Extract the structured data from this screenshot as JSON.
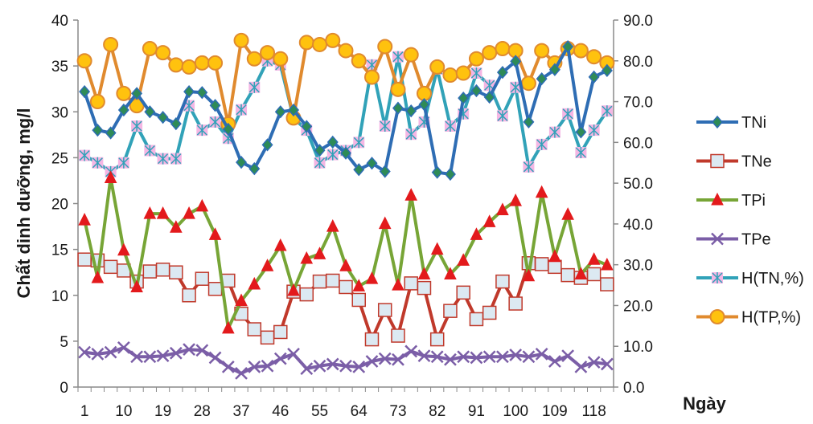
{
  "chart_data": {
    "type": "line",
    "ylabel": "Chất dinh dưỡng, mg/l",
    "xlabel": "Ngày",
    "ylim": [
      0,
      40
    ],
    "y2lim": [
      0,
      90
    ],
    "yticks": [
      "0",
      "5",
      "10",
      "15",
      "20",
      "25",
      "30",
      "35",
      "40"
    ],
    "y2ticks": [
      "0.0",
      "10.0",
      "20.0",
      "30.0",
      "40.0",
      "50.0",
      "60.0",
      "70.0",
      "80.0",
      "90.0"
    ],
    "xticks": [
      "1",
      "10",
      "19",
      "28",
      "37",
      "46",
      "55",
      "64",
      "73",
      "82",
      "91",
      "100",
      "109",
      "118"
    ],
    "grid": false,
    "legend_position": "right",
    "series": [
      {
        "name": "TNi",
        "axis": "left",
        "color": "#2e6db4",
        "marker": "diamond",
        "marker_fill": "#2e8b57",
        "values": [
          32.2,
          28.0,
          27.7,
          30.2,
          32.0,
          30.0,
          29.4,
          28.7,
          32.2,
          32.1,
          30.7,
          28.1,
          24.5,
          23.8,
          26.4,
          30.0,
          30.2,
          28.4,
          25.8,
          26.7,
          25.5,
          23.7,
          24.4,
          23.5,
          30.4,
          30.1,
          30.8,
          23.4,
          23.2,
          31.5,
          32.3,
          31.6,
          34.3,
          35.5,
          28.9,
          33.6,
          34.6,
          37.1,
          27.8,
          33.8,
          34.5
        ]
      },
      {
        "name": "TNe",
        "axis": "left",
        "color": "#c0392b",
        "marker": "square",
        "marker_fill": "#dce9f2",
        "values": [
          13.9,
          13.8,
          13.1,
          12.7,
          11.5,
          12.6,
          12.8,
          12.5,
          10.0,
          11.8,
          10.7,
          11.6,
          8.0,
          6.3,
          5.4,
          6.0,
          10.4,
          10.1,
          11.5,
          11.6,
          10.9,
          9.5,
          5.2,
          8.4,
          5.6,
          11.3,
          10.8,
          5.2,
          8.3,
          10.3,
          7.4,
          8.1,
          11.5,
          9.1,
          13.5,
          13.4,
          13.1,
          12.2,
          11.9,
          12.3,
          11.2
        ]
      },
      {
        "name": "TPi",
        "axis": "left",
        "color": "#77a536",
        "marker": "triangle",
        "marker_fill": "#e31a1c",
        "values": [
          18.2,
          11.9,
          22.8,
          14.9,
          10.9,
          18.9,
          18.9,
          17.4,
          18.9,
          19.7,
          16.6,
          6.4,
          9.4,
          11.2,
          13.2,
          15.4,
          10.5,
          14.0,
          14.5,
          17.5,
          13.2,
          11.0,
          11.8,
          17.8,
          11.1,
          20.9,
          12.3,
          15.0,
          12.3,
          13.8,
          16.6,
          18.0,
          19.3,
          20.3,
          12.1,
          21.2,
          14.2,
          18.8,
          12.3,
          13.9,
          13.3
        ]
      },
      {
        "name": "TPe",
        "axis": "left",
        "color": "#7b5ea7",
        "marker": "x",
        "marker_fill": "#7b5ea7",
        "values": [
          3.8,
          3.6,
          3.8,
          4.3,
          3.3,
          3.3,
          3.4,
          3.7,
          4.1,
          4.0,
          3.2,
          2.2,
          1.5,
          2.2,
          2.3,
          3.1,
          3.6,
          2.0,
          2.3,
          2.5,
          2.3,
          2.2,
          2.8,
          3.1,
          3.0,
          3.9,
          3.4,
          3.3,
          3.0,
          3.3,
          3.2,
          3.3,
          3.3,
          3.5,
          3.3,
          3.6,
          2.8,
          3.4,
          2.2,
          2.7,
          2.5
        ]
      },
      {
        "name": "H(TN,%)",
        "axis": "right",
        "color": "#31a2b8",
        "marker": "asterisk",
        "marker_fill": "#f4b6e4",
        "values": [
          56.8,
          55.0,
          52.8,
          55.0,
          64.0,
          58.0,
          56.0,
          56.0,
          69.0,
          63.0,
          65.0,
          61.0,
          68.0,
          73.5,
          80.0,
          79.0,
          66.0,
          63.0,
          55.0,
          57.0,
          58.0,
          60.0,
          79.0,
          64.0,
          81.0,
          62.0,
          65.0,
          78.0,
          64.0,
          67.0,
          77.0,
          74.0,
          66.5,
          73.5,
          54.0,
          59.5,
          62.5,
          67.0,
          57.5,
          63.0,
          67.7
        ]
      },
      {
        "name": "H(TP,%)",
        "axis": "right",
        "color": "#e08a2e",
        "marker": "circle",
        "marker_fill": "#ffc20e",
        "values": [
          80.0,
          70.0,
          84.0,
          72.0,
          69.0,
          83.0,
          82.0,
          79.0,
          78.5,
          79.5,
          79.5,
          64.5,
          85.0,
          80.5,
          82.0,
          80.5,
          66.0,
          84.5,
          84.0,
          85.0,
          82.5,
          80.0,
          76.0,
          83.5,
          73.0,
          81.5,
          72.0,
          78.5,
          76.5,
          77.0,
          80.5,
          82.0,
          83.0,
          82.5,
          74.5,
          82.5,
          79.5,
          83.0,
          82.5,
          81.0,
          79.5
        ]
      }
    ]
  }
}
